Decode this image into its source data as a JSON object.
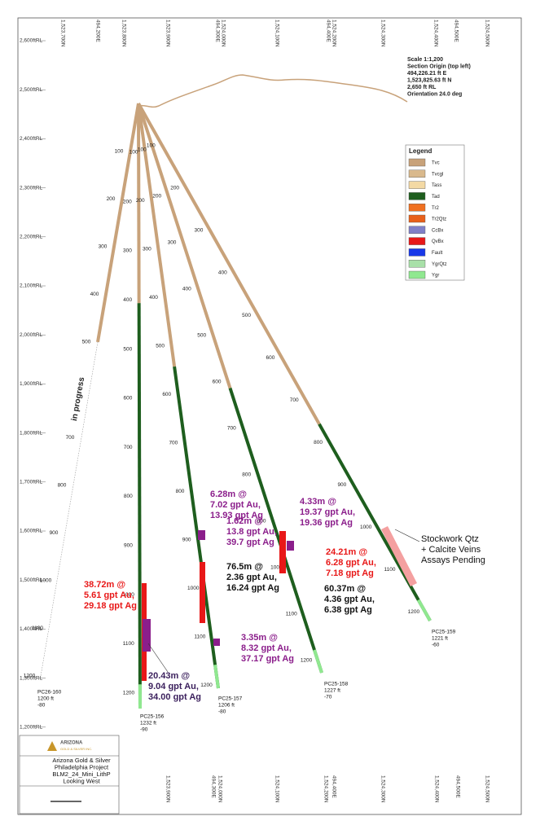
{
  "scale_info": [
    "Scale 1:1,200",
    "Section Origin (top left)",
    "494,226.21 ft E",
    "1,523,825.63 ft N",
    "2,650 ft RL",
    "Orientation 24.0 deg"
  ],
  "elevation_labels": [
    "2,600ftRL",
    "2,500ftRL",
    "2,400ftRL",
    "2,300ftRL",
    "2,200ftRL",
    "2,100ftRL",
    "2,000ftRL",
    "1,900ftRL",
    "1,800ftRL",
    "1,700ftRL",
    "1,600ftRL",
    "1,500ftRL",
    "1,400ftRL",
    "1,300ftRL",
    "1,200ftRL"
  ],
  "grid_top": [
    "1,523,700N",
    "494,200E",
    "1,523,800N",
    "1,523,900N",
    "494,300E",
    "1,524,000N",
    "1,524,100N",
    "494,400E",
    "1,524,200N",
    "1,524,300N",
    "1,524,400N",
    "494,500E",
    "1,524,500N"
  ],
  "grid_bottom": [
    "1,523,900N",
    "494,300E",
    "1,524,000N",
    "1,524,100N",
    "1,524,200N",
    "494,400E",
    "1,524,300N",
    "1,524,400N",
    "494,500E",
    "1,524,500N"
  ],
  "legend": {
    "title": "Legend",
    "items": [
      {
        "name": "Tvc",
        "color": "#c8a27a"
      },
      {
        "name": "Tvcgl",
        "color": "#d9b98c"
      },
      {
        "name": "Tass",
        "color": "#f3d9a4"
      },
      {
        "name": "Tad",
        "color": "#1e5e1e"
      },
      {
        "name": "Tr2",
        "color": "#f07020"
      },
      {
        "name": "Tr2Qtz",
        "color": "#e8601a"
      },
      {
        "name": "CcBx",
        "color": "#8080c8"
      },
      {
        "name": "QvBx",
        "color": "#e81818"
      },
      {
        "name": "Fault",
        "color": "#1838e8"
      },
      {
        "name": "YgrQtz",
        "color": "#a8e0a8"
      },
      {
        "name": "Ygr",
        "color": "#90e890"
      }
    ]
  },
  "holes": [
    {
      "name": "PC26-160",
      "length": "1200 ft",
      "dip": "-80",
      "depths": [
        100,
        200,
        300,
        400,
        500,
        700,
        800,
        900,
        1000,
        1100,
        1200
      ]
    },
    {
      "name": "PC25-156",
      "length": "1232 ft",
      "dip": "-90",
      "depths": [
        200,
        300,
        400,
        500,
        600,
        700,
        800,
        900,
        1000,
        1100,
        1200
      ]
    },
    {
      "name": "PC25-157",
      "length": "1206 ft",
      "dip": "-80",
      "depths": [
        100,
        200,
        300,
        400,
        500,
        600,
        700,
        800,
        900,
        1000,
        1100,
        1200
      ]
    },
    {
      "name": "PC25-158",
      "length": "1227 ft",
      "dip": "-70",
      "depths": [
        100,
        200,
        300,
        400,
        500,
        600,
        700,
        800,
        900,
        1000,
        1100,
        1200
      ]
    },
    {
      "name": "PC25-159",
      "length": "1221 ft",
      "dip": "-60",
      "depths": [
        100,
        200,
        300,
        400,
        500,
        600,
        700,
        800,
        900,
        1000,
        1100,
        1200
      ]
    }
  ],
  "in_progress": "in progress",
  "intercepts": [
    {
      "lines": [
        "38.72m @",
        "5.61 gpt Au,",
        "29.18 gpt Ag"
      ],
      "color": "#e81818"
    },
    {
      "lines": [
        "20.43m @",
        "9.04 gpt Au,",
        "34.00 gpt Ag"
      ],
      "color": "#3a1f5c"
    },
    {
      "lines": [
        "6.28m @",
        "7.02 gpt Au,",
        "13.93 gpt Ag"
      ],
      "color": "#8b1e8b"
    },
    {
      "lines": [
        "1.62m @",
        "13.8 gpt Au,",
        "39.7 gpt Ag"
      ],
      "color": "#8b1e8b"
    },
    {
      "lines": [
        "76.5m @",
        "2.36 gpt Au,",
        "16.24 gpt Ag"
      ],
      "color": "#111111"
    },
    {
      "lines": [
        "3.35m @",
        "8.32 gpt Au,",
        "37.17 gpt Ag"
      ],
      "color": "#8b1e8b"
    },
    {
      "lines": [
        "4.33m @",
        "19.37 gpt Au,",
        "19.36 gpt Ag"
      ],
      "color": "#8b1e8b"
    },
    {
      "lines": [
        "24.21m @",
        "6.28 gpt Au,",
        "7.18 gpt Ag"
      ],
      "color": "#e81818"
    },
    {
      "lines": [
        "60.37m @",
        "4.36 gpt Au,",
        "6.38 gpt Ag"
      ],
      "color": "#111111"
    }
  ],
  "note": [
    "Stockwork Qtz",
    "+ Calcite Veins",
    "Assays Pending"
  ],
  "title_block": {
    "company": "ARIZONA",
    "company_sub": "GOLD & SILVER INC.",
    "lines": [
      "Arizona Gold & Silver",
      "Philadelphia Project",
      "BLM2_24_Mini_LithP",
      "Looking West"
    ]
  }
}
